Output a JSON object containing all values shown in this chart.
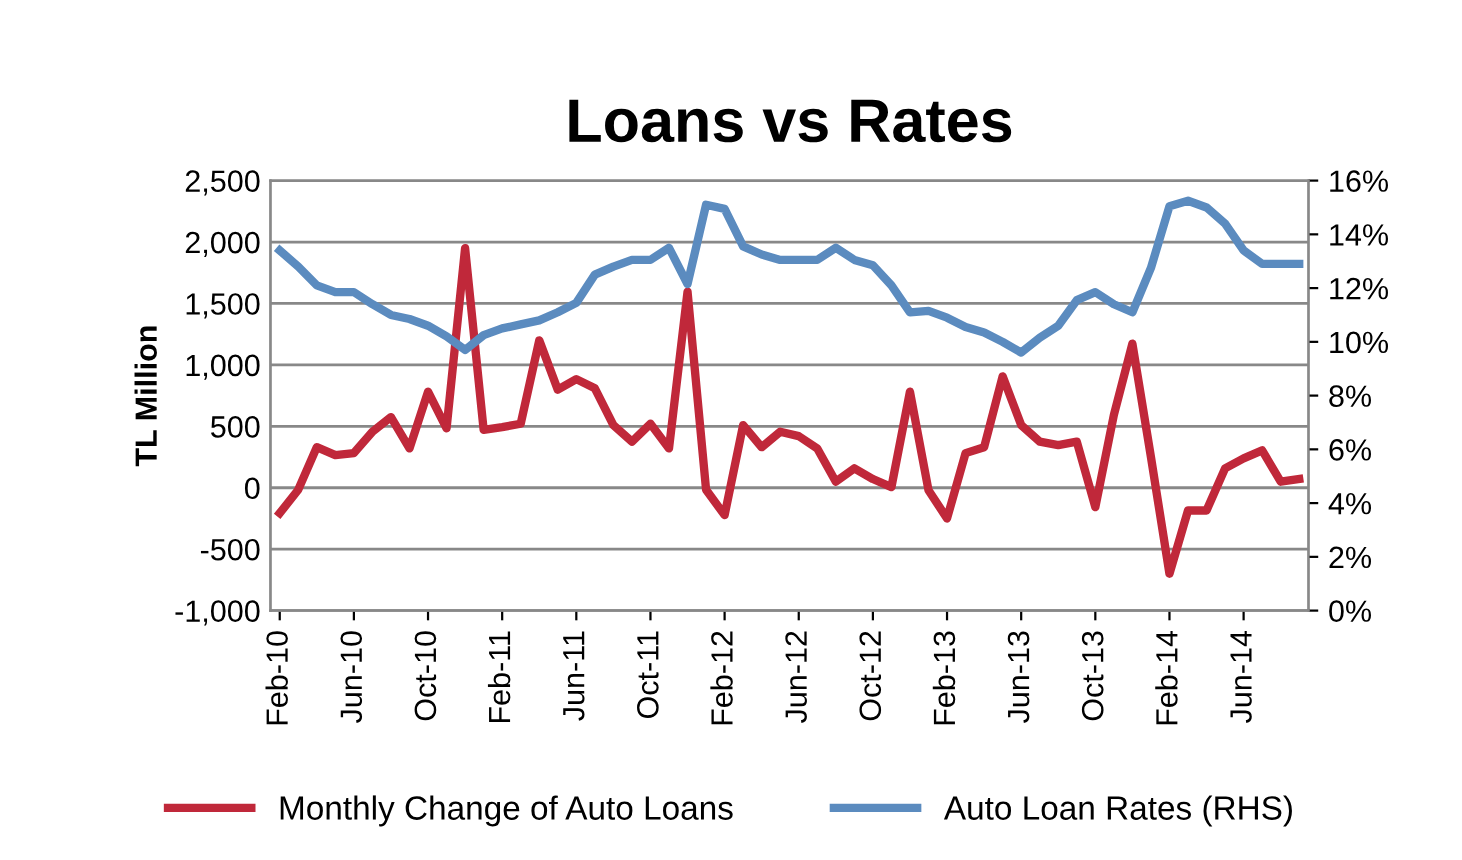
{
  "chart_data": {
    "type": "line",
    "title": "Loans vs Rates",
    "ylabel": "TL Million",
    "categories": [
      "Feb-10",
      null,
      null,
      null,
      "Jun-10",
      null,
      null,
      null,
      "Oct-10",
      null,
      null,
      null,
      "Feb-11",
      null,
      null,
      null,
      "Jun-11",
      null,
      null,
      null,
      "Oct-11",
      null,
      null,
      null,
      "Feb-12",
      null,
      null,
      null,
      "Jun-12",
      null,
      null,
      null,
      "Oct-12",
      null,
      null,
      null,
      "Feb-13",
      null,
      null,
      null,
      "Jun-13",
      null,
      null,
      null,
      "Oct-13",
      null,
      null,
      null,
      "Feb-14",
      null,
      null,
      null,
      "Jun-14",
      null,
      null,
      null
    ],
    "series": [
      {
        "name": "Monthly Change of Auto Loans",
        "color": "#c0283a",
        "values": [
          -207,
          -16,
          330,
          265,
          282,
          456,
          575,
          320,
          782,
          484,
          1950,
          472,
          494,
          521,
          1200,
          798,
          884,
          809,
          510,
          375,
          521,
          320,
          1596,
          -16,
          -223,
          510,
          330,
          456,
          420,
          320,
          49,
          158,
          71,
          5,
          782,
          -20,
          -250,
          282,
          330,
          907,
          510,
          375,
          347,
          375,
          -158,
          592,
          1173,
          250,
          -700,
          -185,
          -185,
          158,
          239,
          304,
          49,
          71
        ]
      },
      {
        "name": "Auto Loan Rates (RHS)",
        "color": "#5b8bbf",
        "axis": "y2",
        "values": [
          13.4,
          12.8,
          12.1,
          11.85,
          11.85,
          11.4,
          11.0,
          10.85,
          10.6,
          10.2,
          9.7,
          10.25,
          10.5,
          10.65,
          10.8,
          11.1,
          11.45,
          12.5,
          12.8,
          13.05,
          13.05,
          13.5,
          12.15,
          15.1,
          14.95,
          13.55,
          13.25,
          13.05,
          13.05,
          13.05,
          13.5,
          13.05,
          12.85,
          12.1,
          11.1,
          11.15,
          10.9,
          10.55,
          10.35,
          10.0,
          9.6,
          10.15,
          10.6,
          11.55,
          11.85,
          11.4,
          11.1,
          12.75,
          15.05,
          15.25,
          15.0,
          14.4,
          13.4,
          12.9,
          12.9,
          12.9
        ]
      }
    ],
    "ylim": [
      -1000,
      2500
    ],
    "yticks": [
      {
        "value": -1000,
        "label": "-1,000"
      },
      {
        "value": -500,
        "label": "-500"
      },
      0,
      500,
      {
        "value": 1000,
        "label": "1,000"
      },
      {
        "value": 1500,
        "label": "1,500"
      },
      {
        "value": 2000,
        "label": "2,000"
      },
      {
        "value": 2500,
        "label": "2,500"
      }
    ],
    "y2lim": [
      0,
      16
    ],
    "y2ticks": [
      {
        "value": 0,
        "label": "0%"
      },
      {
        "value": 2,
        "label": "2%"
      },
      {
        "value": 4,
        "label": "4%"
      },
      {
        "value": 6,
        "label": "6%"
      },
      {
        "value": 8,
        "label": "8%"
      },
      {
        "value": 10,
        "label": "10%"
      },
      {
        "value": 12,
        "label": "12%"
      },
      {
        "value": 14,
        "label": "14%"
      },
      {
        "value": 16,
        "label": "16%"
      }
    ],
    "grid": "y",
    "legend": "bottom",
    "marker": "none",
    "line_style": "solid"
  }
}
